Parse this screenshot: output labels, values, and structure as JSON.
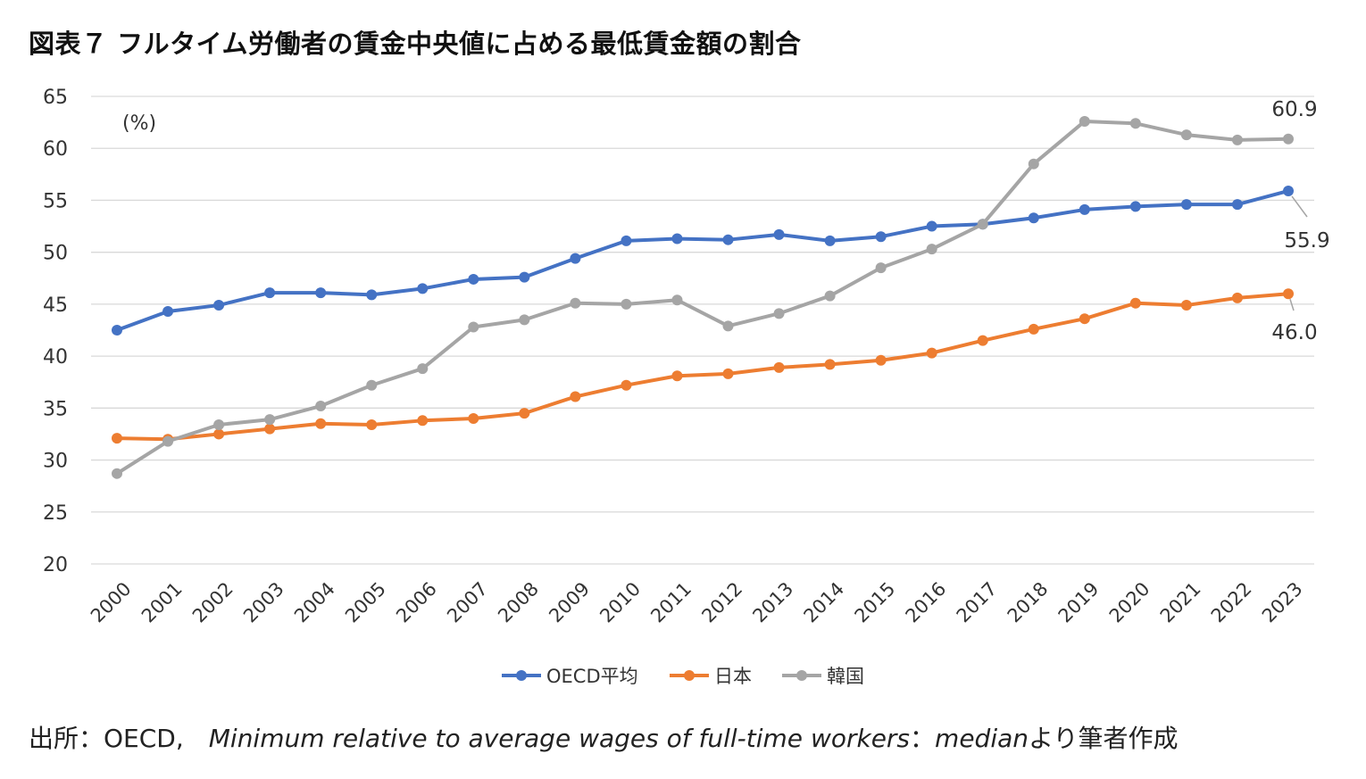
{
  "title": "図表７ フルタイム労働者の賃金中央値に占める最低賃金額の割合",
  "source": {
    "prefix": "出所：OECD,",
    "italic": "Minimum relative to average wages of full-time workers",
    "middle": "：",
    "italic2": "median",
    "suffix": "より筆者作成"
  },
  "chart_data": {
    "type": "line",
    "unit_label": "(%)",
    "ylim": [
      20,
      65
    ],
    "yticks": [
      20,
      25,
      30,
      35,
      40,
      45,
      50,
      55,
      60,
      65
    ],
    "grid": true,
    "legend_position": "bottom",
    "categories": [
      "2000",
      "2001",
      "2002",
      "2003",
      "2004",
      "2005",
      "2006",
      "2007",
      "2008",
      "2009",
      "2010",
      "2011",
      "2012",
      "2013",
      "2014",
      "2015",
      "2016",
      "2017",
      "2018",
      "2019",
      "2020",
      "2021",
      "2022",
      "2023"
    ],
    "series": [
      {
        "name": "OECD平均",
        "color": "#4472C4",
        "values": [
          42.5,
          44.3,
          44.9,
          46.1,
          46.1,
          45.9,
          46.5,
          47.4,
          47.6,
          49.4,
          51.1,
          51.3,
          51.2,
          51.7,
          51.1,
          51.5,
          52.5,
          52.7,
          53.3,
          54.1,
          54.4,
          54.6,
          54.6,
          55.9
        ],
        "end_label": "55.9"
      },
      {
        "name": "日本",
        "color": "#ED7D31",
        "values": [
          32.1,
          32.0,
          32.5,
          33.0,
          33.5,
          33.4,
          33.8,
          34.0,
          34.5,
          36.1,
          37.2,
          38.1,
          38.3,
          38.9,
          39.2,
          39.6,
          40.3,
          41.5,
          42.6,
          43.6,
          45.1,
          44.9,
          45.6,
          46.0
        ],
        "end_label": "46.0"
      },
      {
        "name": "韓国",
        "color": "#A5A5A5",
        "values": [
          28.7,
          31.8,
          33.4,
          33.9,
          35.2,
          37.2,
          38.8,
          42.8,
          43.5,
          45.1,
          45.0,
          45.4,
          42.9,
          44.1,
          45.8,
          48.5,
          50.3,
          52.7,
          58.5,
          62.6,
          62.4,
          61.3,
          60.8,
          60.9
        ],
        "end_label": "60.9"
      }
    ]
  }
}
